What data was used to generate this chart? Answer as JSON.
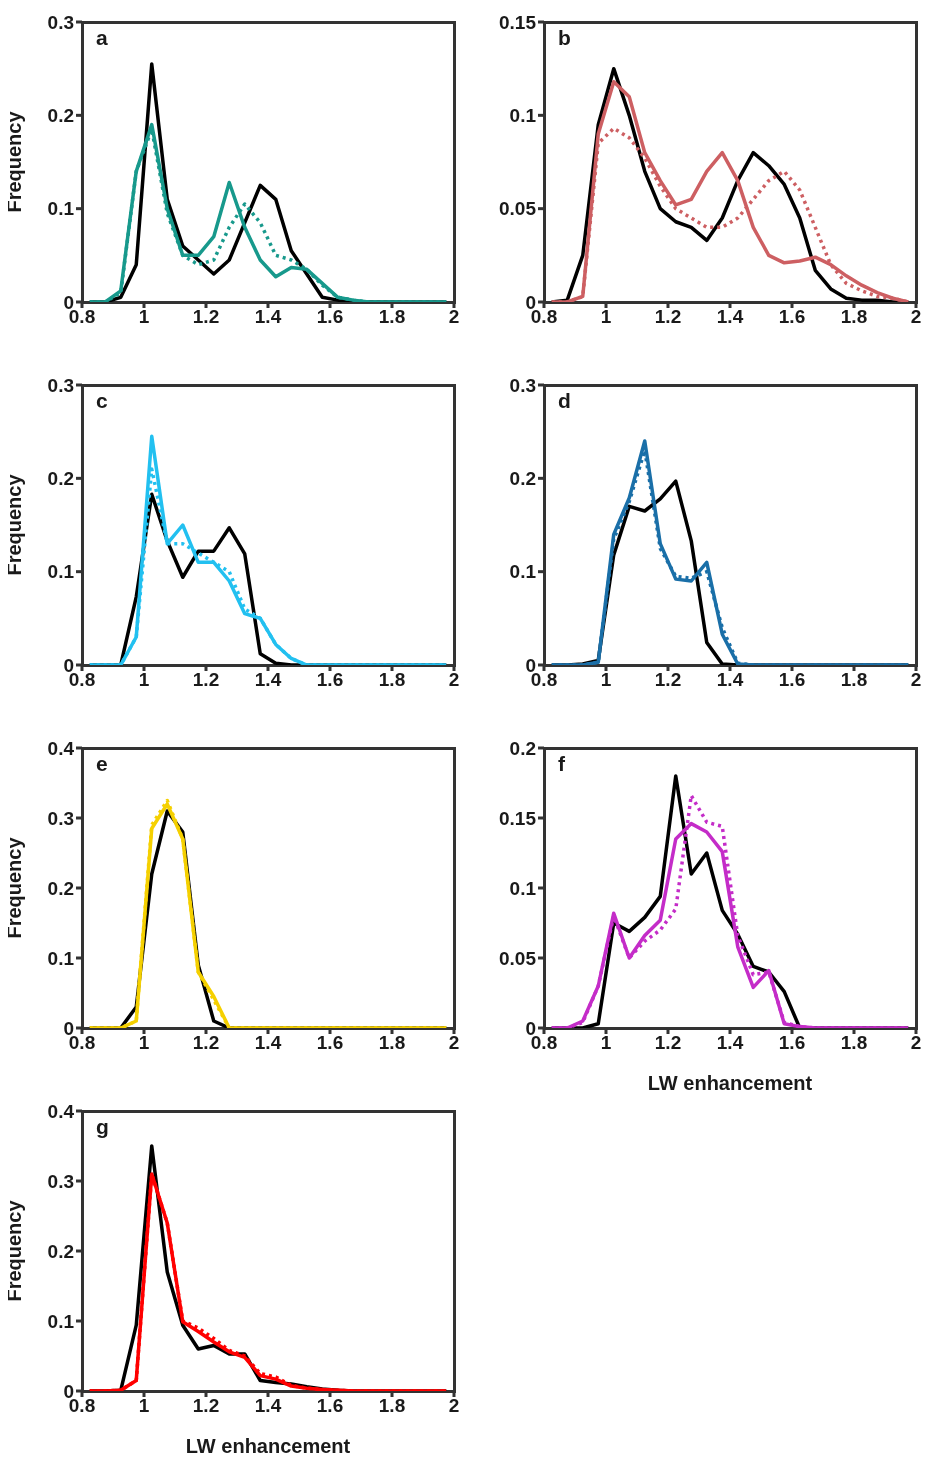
{
  "chart_data": [
    {
      "type": "line",
      "title": "a",
      "ylabel": "Frequency",
      "xlim": [
        0.8,
        2
      ],
      "xticks": [
        0.8,
        1,
        1.2,
        1.4,
        1.6,
        1.8,
        2
      ],
      "ylim": [
        0,
        0.3
      ],
      "yticks": [
        0,
        0.1,
        0.2,
        0.3
      ],
      "grid": false,
      "marker": "none",
      "x": [
        0.825,
        0.875,
        0.925,
        0.975,
        1.025,
        1.075,
        1.125,
        1.175,
        1.225,
        1.275,
        1.325,
        1.375,
        1.425,
        1.475,
        1.525,
        1.575,
        1.625,
        1.675,
        1.725,
        1.775,
        1.825,
        1.875,
        1.925,
        1.975
      ],
      "series": [
        {
          "color": "#000000",
          "line_style": "solid",
          "values": [
            0,
            0,
            0.005,
            0.04,
            0.255,
            0.11,
            0.06,
            0.045,
            0.03,
            0.045,
            0.085,
            0.125,
            0.11,
            0.055,
            0.03,
            0.005,
            0.002,
            0,
            0,
            0,
            0,
            0,
            0,
            0
          ]
        },
        {
          "color": "#17998c",
          "line_style": "dotted",
          "values": [
            0,
            0,
            0.01,
            0.14,
            0.185,
            0.095,
            0.05,
            0.04,
            0.045,
            0.08,
            0.105,
            0.085,
            0.05,
            0.045,
            0.035,
            0.018,
            0.005,
            0.002,
            0,
            0,
            0,
            0,
            0,
            0
          ]
        },
        {
          "color": "#17998c",
          "line_style": "solid",
          "values": [
            0,
            0,
            0.012,
            0.14,
            0.19,
            0.1,
            0.05,
            0.05,
            0.07,
            0.128,
            0.08,
            0.045,
            0.027,
            0.037,
            0.035,
            0.02,
            0.005,
            0.002,
            0,
            0,
            0,
            0,
            0,
            0
          ]
        }
      ]
    },
    {
      "type": "line",
      "title": "b",
      "xlim": [
        0.8,
        2
      ],
      "xticks": [
        0.8,
        1,
        1.2,
        1.4,
        1.6,
        1.8,
        2
      ],
      "ylim": [
        0,
        0.15
      ],
      "yticks": [
        0,
        0.05,
        0.1,
        0.15
      ],
      "grid": false,
      "marker": "none",
      "x": [
        0.825,
        0.875,
        0.925,
        0.975,
        1.025,
        1.075,
        1.125,
        1.175,
        1.225,
        1.275,
        1.325,
        1.375,
        1.425,
        1.475,
        1.525,
        1.575,
        1.625,
        1.675,
        1.725,
        1.775,
        1.825,
        1.875,
        1.925,
        1.975
      ],
      "series": [
        {
          "color": "#000000",
          "line_style": "solid",
          "values": [
            0,
            0.001,
            0.025,
            0.095,
            0.125,
            0.1,
            0.07,
            0.05,
            0.043,
            0.04,
            0.033,
            0.045,
            0.065,
            0.08,
            0.073,
            0.063,
            0.045,
            0.017,
            0.007,
            0.002,
            0.001,
            0.001,
            0,
            0
          ]
        },
        {
          "color": "#cd5f62",
          "line_style": "dotted",
          "values": [
            0,
            0,
            0.003,
            0.085,
            0.093,
            0.088,
            0.077,
            0.062,
            0.05,
            0.045,
            0.04,
            0.04,
            0.045,
            0.055,
            0.065,
            0.07,
            0.06,
            0.04,
            0.02,
            0.01,
            0.006,
            0.003,
            0.002,
            0
          ]
        },
        {
          "color": "#cd5f62",
          "line_style": "solid",
          "values": [
            0,
            0,
            0.003,
            0.09,
            0.118,
            0.11,
            0.08,
            0.065,
            0.052,
            0.055,
            0.07,
            0.08,
            0.065,
            0.04,
            0.025,
            0.021,
            0.022,
            0.024,
            0.02,
            0.014,
            0.009,
            0.005,
            0.002,
            0
          ]
        }
      ]
    },
    {
      "type": "line",
      "title": "c",
      "ylabel": "Frequency",
      "xlim": [
        0.8,
        2
      ],
      "xticks": [
        0.8,
        1,
        1.2,
        1.4,
        1.6,
        1.8,
        2
      ],
      "ylim": [
        0,
        0.3
      ],
      "yticks": [
        0,
        0.1,
        0.2,
        0.3
      ],
      "grid": false,
      "marker": "none",
      "x": [
        0.825,
        0.875,
        0.925,
        0.975,
        1.025,
        1.075,
        1.125,
        1.175,
        1.225,
        1.275,
        1.325,
        1.375,
        1.425,
        1.475,
        1.525,
        1.575,
        1.625,
        1.675,
        1.725,
        1.775,
        1.825,
        1.875,
        1.925,
        1.975
      ],
      "series": [
        {
          "color": "#000000",
          "line_style": "solid",
          "values": [
            0,
            0,
            0,
            0.073,
            0.183,
            0.133,
            0.094,
            0.122,
            0.122,
            0.147,
            0.119,
            0.012,
            0.002,
            0,
            0,
            0,
            0,
            0,
            0,
            0,
            0,
            0,
            0,
            0
          ]
        },
        {
          "color": "#22c0f0",
          "line_style": "dotted",
          "values": [
            0,
            0,
            0,
            0.03,
            0.21,
            0.13,
            0.13,
            0.12,
            0.11,
            0.1,
            0.06,
            0.05,
            0.022,
            0.007,
            0,
            0,
            0,
            0,
            0,
            0,
            0,
            0,
            0,
            0
          ]
        },
        {
          "color": "#22c0f0",
          "line_style": "solid",
          "values": [
            0,
            0,
            0,
            0.03,
            0.245,
            0.13,
            0.15,
            0.11,
            0.11,
            0.09,
            0.055,
            0.05,
            0.022,
            0.007,
            0,
            0,
            0,
            0,
            0,
            0,
            0,
            0,
            0,
            0
          ]
        }
      ]
    },
    {
      "type": "line",
      "title": "d",
      "xlim": [
        0.8,
        2
      ],
      "xticks": [
        0.8,
        1,
        1.2,
        1.4,
        1.6,
        1.8,
        2
      ],
      "ylim": [
        0,
        0.3
      ],
      "yticks": [
        0,
        0.1,
        0.2,
        0.3
      ],
      "grid": false,
      "marker": "none",
      "x": [
        0.825,
        0.875,
        0.925,
        0.975,
        1.025,
        1.075,
        1.125,
        1.175,
        1.225,
        1.275,
        1.325,
        1.375,
        1.425,
        1.475,
        1.525,
        1.575,
        1.625,
        1.675,
        1.725,
        1.775,
        1.825,
        1.875,
        1.925,
        1.975
      ],
      "series": [
        {
          "color": "#000000",
          "line_style": "solid",
          "values": [
            0,
            0,
            0.001,
            0.005,
            0.118,
            0.17,
            0.165,
            0.178,
            0.197,
            0.133,
            0.024,
            0.001,
            0,
            0,
            0,
            0,
            0,
            0,
            0,
            0,
            0,
            0,
            0,
            0
          ]
        },
        {
          "color": "#1a6fa8",
          "line_style": "dotted",
          "values": [
            0,
            0,
            0,
            0.003,
            0.135,
            0.175,
            0.23,
            0.125,
            0.095,
            0.093,
            0.1,
            0.04,
            0.002,
            0,
            0,
            0,
            0,
            0,
            0,
            0,
            0,
            0,
            0,
            0
          ]
        },
        {
          "color": "#1a6fa8",
          "line_style": "solid",
          "values": [
            0,
            0,
            0,
            0.003,
            0.14,
            0.179,
            0.24,
            0.13,
            0.092,
            0.09,
            0.11,
            0.033,
            0.001,
            0,
            0,
            0,
            0,
            0,
            0,
            0,
            0,
            0,
            0,
            0
          ]
        }
      ]
    },
    {
      "type": "line",
      "title": "e",
      "ylabel": "Frequency",
      "xlim": [
        0.8,
        2
      ],
      "xticks": [
        0.8,
        1,
        1.2,
        1.4,
        1.6,
        1.8,
        2
      ],
      "ylim": [
        0,
        0.4
      ],
      "yticks": [
        0,
        0.1,
        0.2,
        0.3,
        0.4
      ],
      "grid": false,
      "marker": "none",
      "x": [
        0.825,
        0.875,
        0.925,
        0.975,
        1.025,
        1.075,
        1.125,
        1.175,
        1.225,
        1.275,
        1.325,
        1.375,
        1.425,
        1.475,
        1.525,
        1.575,
        1.625,
        1.675,
        1.725,
        1.775,
        1.825,
        1.875,
        1.925,
        1.975
      ],
      "series": [
        {
          "color": "#000000",
          "line_style": "solid",
          "values": [
            0,
            0,
            0,
            0.03,
            0.22,
            0.31,
            0.28,
            0.09,
            0.01,
            0,
            0,
            0,
            0,
            0,
            0,
            0,
            0,
            0,
            0,
            0,
            0,
            0,
            0,
            0
          ]
        },
        {
          "color": "#f5d000",
          "line_style": "dotted",
          "values": [
            0,
            0,
            0,
            0.01,
            0.29,
            0.325,
            0.27,
            0.08,
            0.04,
            0,
            0,
            0,
            0,
            0,
            0,
            0,
            0,
            0,
            0,
            0,
            0,
            0,
            0,
            0
          ]
        },
        {
          "color": "#f5d000",
          "line_style": "solid",
          "values": [
            0,
            0,
            0,
            0.01,
            0.285,
            0.32,
            0.27,
            0.08,
            0.045,
            0,
            0,
            0,
            0,
            0,
            0,
            0,
            0,
            0,
            0,
            0,
            0,
            0,
            0,
            0
          ]
        }
      ]
    },
    {
      "type": "line",
      "title": "f",
      "xlabel": "LW enhancement",
      "xlim": [
        0.8,
        2
      ],
      "xticks": [
        0.8,
        1,
        1.2,
        1.4,
        1.6,
        1.8,
        2
      ],
      "ylim": [
        0,
        0.2
      ],
      "yticks": [
        0,
        0.05,
        0.1,
        0.15,
        0.2
      ],
      "grid": false,
      "marker": "none",
      "x": [
        0.825,
        0.875,
        0.925,
        0.975,
        1.025,
        1.075,
        1.125,
        1.175,
        1.225,
        1.275,
        1.325,
        1.375,
        1.425,
        1.475,
        1.525,
        1.575,
        1.625,
        1.675,
        1.725,
        1.775,
        1.825,
        1.875,
        1.925,
        1.975
      ],
      "series": [
        {
          "color": "#000000",
          "line_style": "solid",
          "values": [
            0,
            0,
            0,
            0.003,
            0.075,
            0.069,
            0.079,
            0.094,
            0.18,
            0.11,
            0.125,
            0.084,
            0.067,
            0.044,
            0.04,
            0.026,
            0,
            0,
            0,
            0,
            0,
            0,
            0,
            0
          ]
        },
        {
          "color": "#c42cc8",
          "line_style": "dotted",
          "values": [
            0,
            0,
            0.004,
            0.03,
            0.08,
            0.05,
            0.062,
            0.07,
            0.085,
            0.166,
            0.147,
            0.144,
            0.066,
            0.038,
            0.04,
            0.004,
            0.001,
            0,
            0,
            0,
            0,
            0,
            0,
            0
          ]
        },
        {
          "color": "#c42cc8",
          "line_style": "solid",
          "values": [
            0,
            0,
            0.005,
            0.03,
            0.082,
            0.05,
            0.066,
            0.077,
            0.135,
            0.146,
            0.14,
            0.126,
            0.058,
            0.029,
            0.041,
            0.003,
            0.001,
            0,
            0,
            0,
            0,
            0,
            0,
            0
          ]
        }
      ]
    },
    {
      "type": "line",
      "title": "g",
      "xlabel": "LW enhancement",
      "ylabel": "Frequency",
      "xlim": [
        0.8,
        2
      ],
      "xticks": [
        0.8,
        1,
        1.2,
        1.4,
        1.6,
        1.8,
        2
      ],
      "ylim": [
        0,
        0.4
      ],
      "yticks": [
        0,
        0.1,
        0.2,
        0.3,
        0.4
      ],
      "grid": false,
      "marker": "none",
      "x": [
        0.825,
        0.875,
        0.925,
        0.975,
        1.025,
        1.075,
        1.125,
        1.175,
        1.225,
        1.275,
        1.325,
        1.375,
        1.425,
        1.475,
        1.525,
        1.575,
        1.625,
        1.675,
        1.725,
        1.775,
        1.825,
        1.875,
        1.925,
        1.975
      ],
      "series": [
        {
          "color": "#000000",
          "line_style": "solid",
          "values": [
            0,
            0,
            0.001,
            0.094,
            0.35,
            0.17,
            0.094,
            0.06,
            0.065,
            0.053,
            0.053,
            0.015,
            0.012,
            0.01,
            0.006,
            0.003,
            0.001,
            0,
            0,
            0,
            0,
            0,
            0,
            0
          ]
        },
        {
          "color": "#ff0000",
          "line_style": "dotted",
          "values": [
            0,
            0,
            0.001,
            0.015,
            0.31,
            0.24,
            0.1,
            0.09,
            0.075,
            0.058,
            0.05,
            0.025,
            0.02,
            0.008,
            0.004,
            0.002,
            0.001,
            0,
            0,
            0,
            0,
            0,
            0,
            0
          ]
        },
        {
          "color": "#ff0000",
          "line_style": "solid",
          "values": [
            0,
            0,
            0.001,
            0.015,
            0.31,
            0.24,
            0.099,
            0.085,
            0.07,
            0.056,
            0.048,
            0.022,
            0.017,
            0.007,
            0.004,
            0.002,
            0.001,
            0,
            0,
            0,
            0,
            0,
            0,
            0
          ]
        }
      ]
    }
  ]
}
